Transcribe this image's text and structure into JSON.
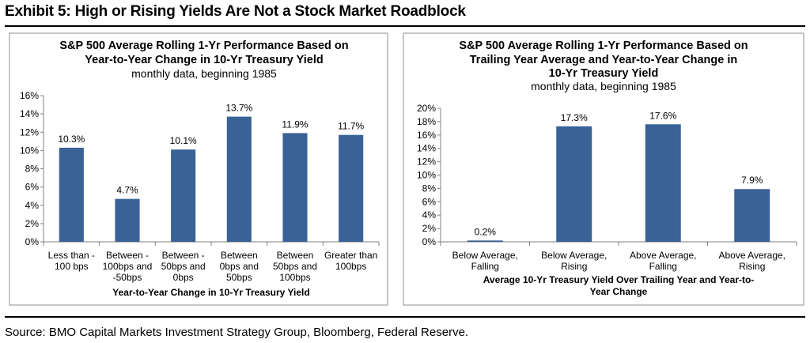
{
  "exhibit_title": "Exhibit 5: High or Rising Yields Are Not a Stock Market Roadblock",
  "source": "Source: BMO Capital Markets Investment Strategy Group, Bloomberg, Federal Reserve.",
  "colors": {
    "bar": "#3a6296",
    "border": "#8c8c8c"
  },
  "chart_data": [
    {
      "type": "bar",
      "title": [
        "S&P 500 Average Rolling 1-Yr Performance Based on",
        "Year-to-Year Change in 10-Yr Treasury Yield"
      ],
      "subtitle": "monthly data, beginning 1985",
      "categories": [
        [
          "Less than -",
          "100 bps"
        ],
        [
          "Between -",
          "100bps and",
          "-50bps"
        ],
        [
          "Between -",
          "50bps and",
          "0bps"
        ],
        [
          "Between",
          "0bps and",
          "50bps"
        ],
        [
          "Between",
          "50bps and",
          "100bps"
        ],
        [
          "Greater than",
          "100bps"
        ]
      ],
      "values": [
        10.3,
        4.7,
        10.1,
        13.7,
        11.9,
        11.7
      ],
      "data_labels": [
        "10.3%",
        "4.7%",
        "10.1%",
        "13.7%",
        "11.9%",
        "11.7%"
      ],
      "xlabel": "Year-to-Year Change in 10-Yr Treasury Yield",
      "ylabel": "",
      "ylim": [
        0,
        16
      ],
      "yticks": [
        "0%",
        "2%",
        "4%",
        "6%",
        "8%",
        "10%",
        "12%",
        "14%",
        "16%"
      ],
      "grid": false,
      "legend": "none"
    },
    {
      "type": "bar",
      "title": [
        "S&P 500 Average Rolling 1-Yr Performance Based on",
        "Trailing Year Average and Year-to-Year Change in",
        "10-Yr Treasury Yield"
      ],
      "subtitle": "monthly data, beginning 1985",
      "categories": [
        [
          "Below Average,",
          "Falling"
        ],
        [
          "Below Average,",
          "Rising"
        ],
        [
          "Above Average,",
          "Falling"
        ],
        [
          "Above Average,",
          "Rising"
        ]
      ],
      "values": [
        0.2,
        17.3,
        17.6,
        7.9
      ],
      "data_labels": [
        "0.2%",
        "17.3%",
        "17.6%",
        "7.9%"
      ],
      "xlabel": [
        "Average 10-Yr Treasury Yield Over Trailing Year and Year-to-",
        "Year Change"
      ],
      "ylabel": "",
      "ylim": [
        0,
        20
      ],
      "yticks": [
        "0%",
        "2%",
        "4%",
        "6%",
        "8%",
        "10%",
        "12%",
        "14%",
        "16%",
        "18%",
        "20%"
      ],
      "grid": false,
      "legend": "none"
    }
  ]
}
